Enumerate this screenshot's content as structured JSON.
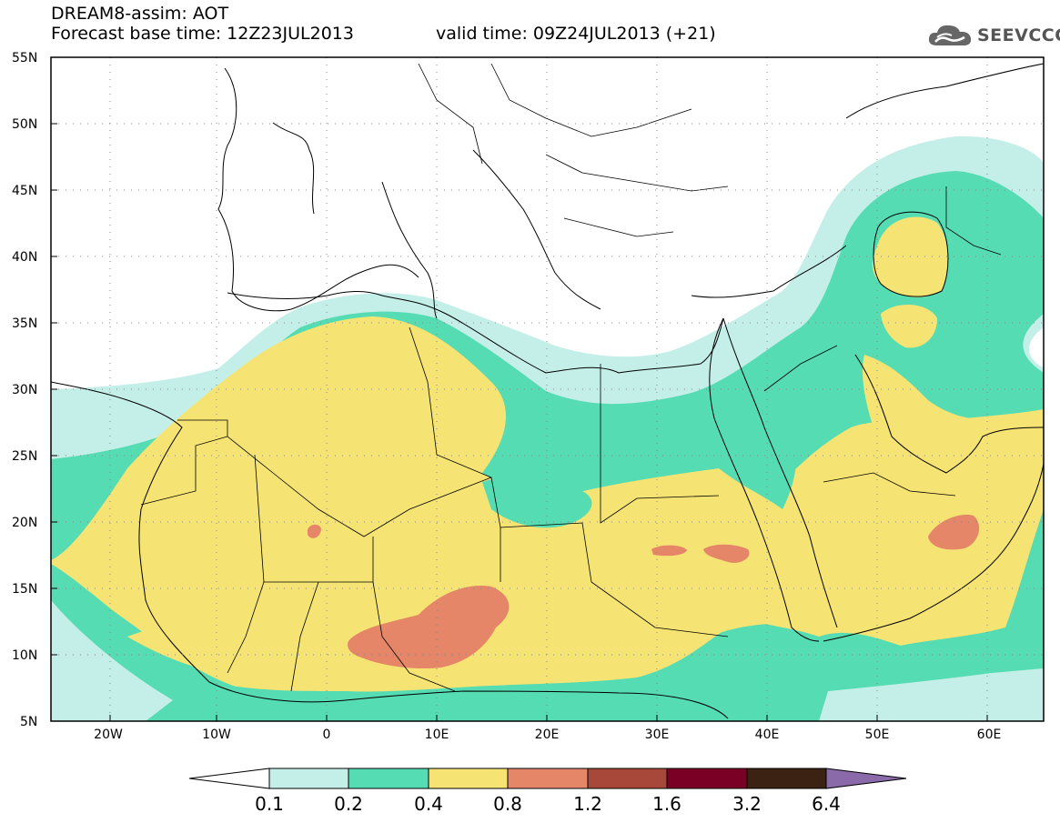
{
  "header": {
    "model": "DREAM8-assim: AOT",
    "base_time": "Forecast base time: 12Z23JUL2013",
    "valid_time": "valid time: 09Z24JUL2013 (+21)"
  },
  "logo": {
    "text": "SEEVCCC",
    "icon": "cloud-icon"
  },
  "map": {
    "lat_labels": [
      "55N",
      "50N",
      "45N",
      "40N",
      "35N",
      "30N",
      "25N",
      "20N",
      "15N",
      "10N",
      "5N"
    ],
    "lon_labels": [
      "20W",
      "10W",
      "0",
      "10E",
      "20E",
      "30E",
      "40E",
      "50E",
      "60E"
    ],
    "lat_range": [
      5,
      55
    ],
    "lon_range": [
      -25,
      65
    ],
    "grid": "dotted"
  },
  "colorbar": {
    "levels": [
      "0.1",
      "0.2",
      "0.4",
      "0.8",
      "1.2",
      "1.6",
      "3.2",
      "6.4"
    ],
    "colors": {
      "below": "#ffffff",
      "c1": "#c4efe8",
      "c2": "#55dcb2",
      "c3": "#f5e373",
      "c4": "#e48667",
      "c5": "#a8483a",
      "c6": "#7b0026",
      "c7": "#3b2212",
      "above": "#8a6aa8"
    }
  }
}
